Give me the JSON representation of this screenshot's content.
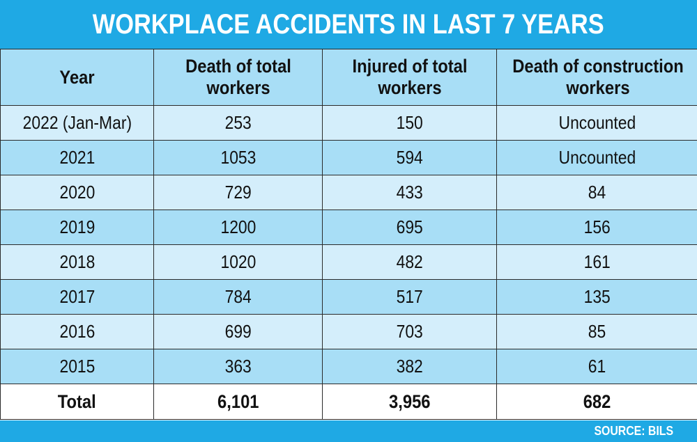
{
  "header": {
    "title": "WORKPLACE ACCIDENTS IN LAST 7 YEARS"
  },
  "footer": {
    "source": "SOURCE: BILS"
  },
  "chart_data": {
    "type": "table",
    "title": "WORKPLACE ACCIDENTS IN LAST 7 YEARS",
    "columns": [
      "Year",
      "Death of total workers",
      "Injured of total workers",
      "Death of construction workers"
    ],
    "rows": [
      [
        "2022 (Jan-Mar)",
        "253",
        "150",
        "Uncounted"
      ],
      [
        "2021",
        "1053",
        "594",
        "Uncounted"
      ],
      [
        "2020",
        "729",
        "433",
        "84"
      ],
      [
        "2019",
        "1200",
        "695",
        "156"
      ],
      [
        "2018",
        "1020",
        "482",
        "161"
      ],
      [
        "2017",
        "784",
        "517",
        "135"
      ],
      [
        "2016",
        "699",
        "703",
        "85"
      ],
      [
        "2015",
        "363",
        "382",
        "61"
      ]
    ],
    "total": [
      "Total",
      "6,101",
      "3,956",
      "682"
    ],
    "colors": {
      "accent": "#1fa9e4",
      "row_light": "#d4eefb",
      "row_dark": "#a8def6"
    }
  }
}
